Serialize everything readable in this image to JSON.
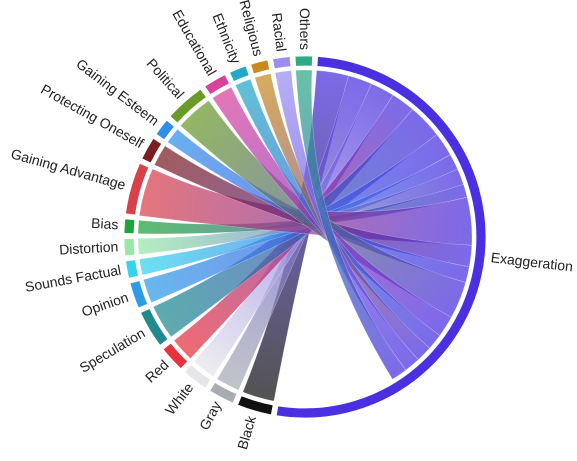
{
  "chart_data": {
    "type": "chord",
    "title": "",
    "groups": [
      {
        "name": "Exaggeration",
        "value": 100,
        "color": "#4a30e0"
      },
      {
        "name": "Black",
        "value": 6,
        "color": "#111111"
      },
      {
        "name": "Gray",
        "value": 4.5,
        "color": "#a9adb3"
      },
      {
        "name": "White",
        "value": 4.5,
        "color": "#e6e6ea"
      },
      {
        "name": "Red",
        "value": 4.5,
        "color": "#e8323c"
      },
      {
        "name": "Speculation",
        "value": 6.5,
        "color": "#1f8a8e"
      },
      {
        "name": "Opinion",
        "value": 4.5,
        "color": "#2f9be8"
      },
      {
        "name": "Sounds Factual",
        "value": 3,
        "color": "#33d4ee"
      },
      {
        "name": "Distortion",
        "value": 3,
        "color": "#98e8a8"
      },
      {
        "name": "Bias",
        "value": 2.5,
        "color": "#1ea43a"
      },
      {
        "name": "Gaining Advantage",
        "value": 9,
        "color": "#d8404a"
      },
      {
        "name": "Protecting Oneself",
        "value": 4,
        "color": "#7a1e22"
      },
      {
        "name": "Gaining Esteem",
        "value": 3,
        "color": "#2f8fe8"
      },
      {
        "name": "Political",
        "value": 7,
        "color": "#6a9a28"
      },
      {
        "name": "Educational",
        "value": 4,
        "color": "#d8429c"
      },
      {
        "name": "Ethnicity",
        "value": 3,
        "color": "#23a8c8"
      },
      {
        "name": "Religious",
        "value": 3,
        "color": "#c88a1e"
      },
      {
        "name": "Racial",
        "value": 3,
        "color": "#9a8ef0"
      },
      {
        "name": "Others",
        "value": 3,
        "color": "#2eaa84"
      }
    ],
    "links": [
      {
        "source": "Exaggeration",
        "target": "Black",
        "value": 6
      },
      {
        "source": "Exaggeration",
        "target": "Gray",
        "value": 4.5
      },
      {
        "source": "Exaggeration",
        "target": "White",
        "value": 4.5
      },
      {
        "source": "Exaggeration",
        "target": "Red",
        "value": 4.5
      },
      {
        "source": "Exaggeration",
        "target": "Speculation",
        "value": 6.5
      },
      {
        "source": "Exaggeration",
        "target": "Opinion",
        "value": 4.5
      },
      {
        "source": "Exaggeration",
        "target": "Sounds Factual",
        "value": 3
      },
      {
        "source": "Exaggeration",
        "target": "Distortion",
        "value": 3
      },
      {
        "source": "Exaggeration",
        "target": "Bias",
        "value": 2.5
      },
      {
        "source": "Exaggeration",
        "target": "Gaining Advantage",
        "value": 9
      },
      {
        "source": "Exaggeration",
        "target": "Protecting Oneself",
        "value": 4
      },
      {
        "source": "Exaggeration",
        "target": "Gaining Esteem",
        "value": 3
      },
      {
        "source": "Exaggeration",
        "target": "Political",
        "value": 7
      },
      {
        "source": "Exaggeration",
        "target": "Educational",
        "value": 4
      },
      {
        "source": "Exaggeration",
        "target": "Ethnicity",
        "value": 3
      },
      {
        "source": "Exaggeration",
        "target": "Religious",
        "value": 3
      },
      {
        "source": "Exaggeration",
        "target": "Racial",
        "value": 3
      },
      {
        "source": "Exaggeration",
        "target": "Others",
        "value": 3
      }
    ]
  }
}
